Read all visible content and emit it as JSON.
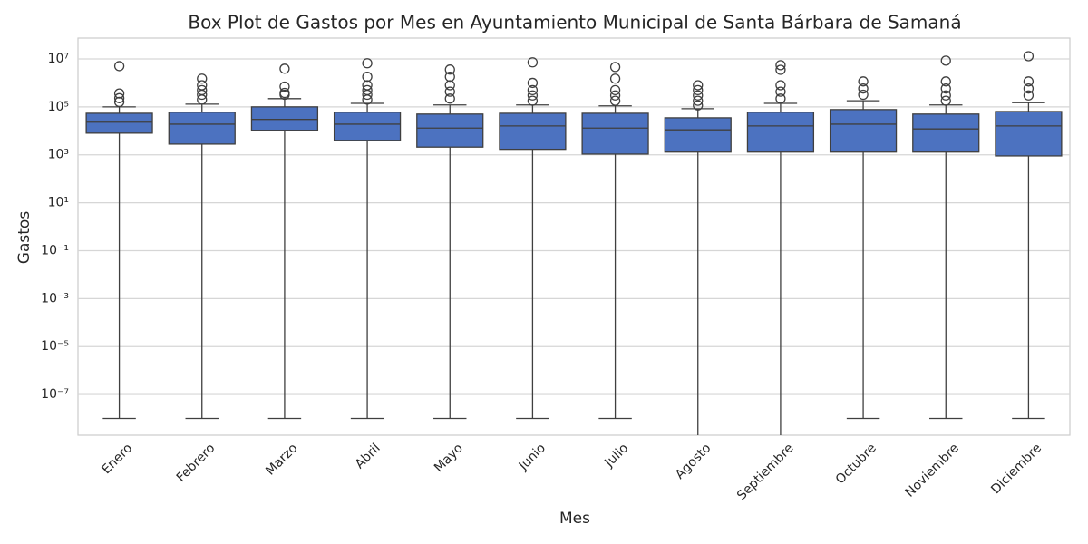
{
  "chart_data": {
    "type": "box",
    "title": "Box Plot de Gastos por Mes en Ayuntamiento Municipal de Santa Bárbara de Samaná",
    "x_label": "Mes",
    "y_label": "Gastos",
    "log_scale": true,
    "grid": true,
    "color": "#4c72c0",
    "categories": [
      "Enero",
      "Febrero",
      "Marzo",
      "Abril",
      "Mayo",
      "Junio",
      "Julio",
      "Agosto",
      "Septiembre",
      "Octubre",
      "Noviembre",
      "Diciembre"
    ],
    "ylim": [
      2e-09,
      74000000.0
    ],
    "yticks": [
      {
        "value": 10000000.0,
        "label": "10⁷"
      },
      {
        "value": 100000.0,
        "label": "10⁵"
      },
      {
        "value": 1000,
        "label": "10³"
      },
      {
        "value": 10,
        "label": "10¹"
      },
      {
        "value": 0.1,
        "label": "10⁻¹"
      },
      {
        "value": 0.001,
        "label": "10⁻³"
      },
      {
        "value": 1e-05,
        "label": "10⁻⁵"
      },
      {
        "value": 1e-07,
        "label": "10⁻⁷"
      }
    ],
    "boxes": [
      {
        "low": 1e-08,
        "q1": 8000,
        "median": 23000,
        "q3": 54000,
        "high": 100000,
        "outliers": [
          5000000,
          360000,
          230000,
          160000
        ]
      },
      {
        "low": 1e-08,
        "q1": 2800,
        "median": 19000,
        "q3": 60000,
        "high": 130000,
        "outliers": [
          1500000,
          800000,
          500000,
          320000,
          200000
        ]
      },
      {
        "low": 1e-08,
        "q1": 10500,
        "median": 30000,
        "q3": 100000,
        "high": 220000,
        "outliers": [
          3900000,
          700000,
          380000,
          320000
        ]
      },
      {
        "low": 1e-08,
        "q1": 4000,
        "median": 19000,
        "q3": 60000,
        "high": 140000,
        "outliers": [
          6600000,
          1800000,
          800000,
          500000,
          320000,
          200000
        ]
      },
      {
        "low": 1e-08,
        "q1": 2100,
        "median": 13000,
        "q3": 50000,
        "high": 120000,
        "outliers": [
          3600000,
          1800000,
          800000,
          430000,
          220000
        ]
      },
      {
        "low": 1e-08,
        "q1": 1700,
        "median": 16000,
        "q3": 54000,
        "high": 120000,
        "outliers": [
          7200000,
          1000000,
          500000,
          300000,
          180000
        ]
      },
      {
        "low": 1e-08,
        "q1": 1070,
        "median": 13000,
        "q3": 54000,
        "high": 110000,
        "outliers": [
          4600000,
          1500000,
          500000,
          300000,
          180000
        ]
      },
      {
        "low": 1e-10,
        "q1": 1300,
        "median": 11000,
        "q3": 35000,
        "high": 84000,
        "outliers": [
          800000,
          500000,
          300000,
          180000,
          115000
        ]
      },
      {
        "low": 1e-10,
        "q1": 1300,
        "median": 16000,
        "q3": 60000,
        "high": 140000,
        "outliers": [
          5500000,
          3500000,
          800000,
          430000,
          220000
        ]
      },
      {
        "low": 1e-08,
        "q1": 1300,
        "median": 19000,
        "q3": 77000,
        "high": 180000,
        "outliers": [
          1150000,
          580000,
          320000
        ]
      },
      {
        "low": 1e-08,
        "q1": 1300,
        "median": 12000,
        "q3": 50000,
        "high": 120000,
        "outliers": [
          8500000,
          1150000,
          580000,
          300000,
          180000
        ]
      },
      {
        "low": 1e-08,
        "q1": 900,
        "median": 16000,
        "q3": 64000,
        "high": 150000,
        "outliers": [
          13000000,
          1150000,
          580000,
          300000
        ]
      }
    ]
  }
}
